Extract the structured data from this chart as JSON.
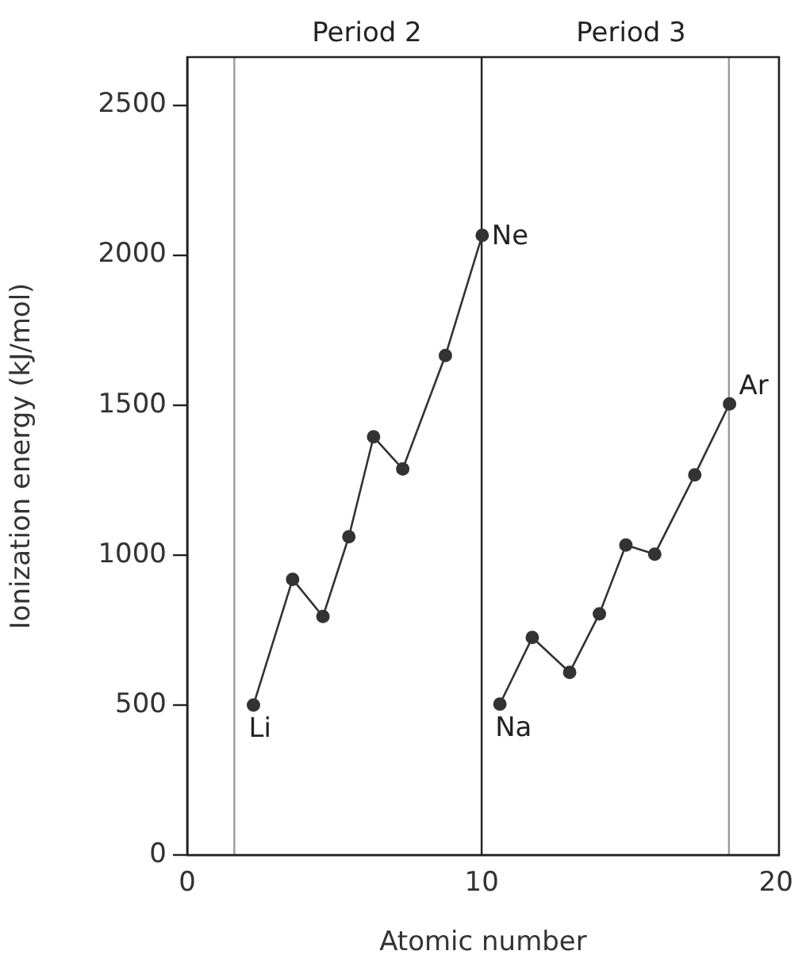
{
  "chart_data": {
    "type": "line",
    "xlabel": "Atomic number",
    "ylabel": "Ionization energy (kJ/mol)",
    "xlim": [
      0,
      20.1
    ],
    "xticks": [
      0,
      10,
      20
    ],
    "ylim": [
      0,
      2660
    ],
    "yticks": [
      0,
      500,
      1000,
      1500,
      2000,
      2500
    ],
    "grid": false,
    "legend": false,
    "marker": "circle",
    "line_style": "solid",
    "series": [
      {
        "color": "#333333",
        "x": [
          2.25,
          3.58,
          4.61,
          5.49,
          6.33,
          7.32,
          8.77,
          10.02
        ],
        "values": [
          500,
          919,
          795,
          1061,
          1394,
          1287,
          1665,
          2066
        ]
      },
      {
        "color": "#333333",
        "x": [
          10.62,
          11.72,
          12.99,
          14.0,
          14.9,
          15.88,
          17.24,
          18.42
        ],
        "values": [
          503,
          725,
          609,
          804,
          1033,
          1003,
          1267,
          1504
        ]
      }
    ],
    "ref_lines": [
      {
        "axis": "x",
        "value": 1.6,
        "color": "#9a9a9a"
      },
      {
        "axis": "x",
        "value": 10,
        "color": "#222222"
      },
      {
        "axis": "x",
        "value": 18.4,
        "color": "#9a9a9a"
      }
    ],
    "annotations": [
      "Period 2",
      "Period 3",
      {
        "text": "Li",
        "x": 2.25,
        "y": 500
      },
      {
        "text": "Ne",
        "x": 10.02,
        "y": 2066
      },
      {
        "text": "Na",
        "x": 10.62,
        "y": 503
      },
      {
        "text": "Ar",
        "x": 18.42,
        "y": 1504
      }
    ]
  }
}
